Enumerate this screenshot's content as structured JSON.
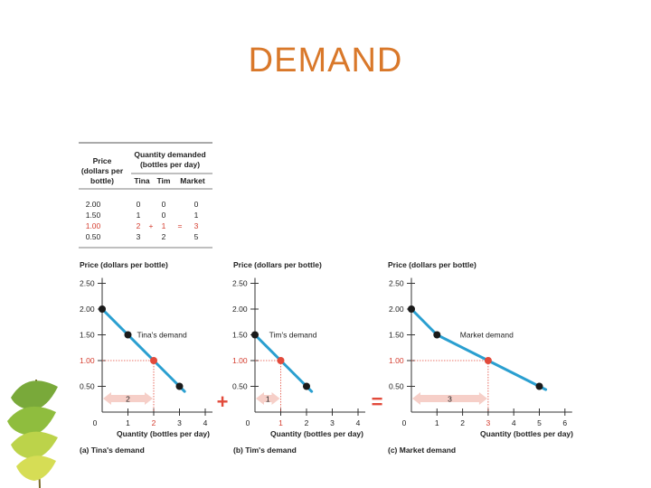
{
  "slide": {
    "title": "DEMAND"
  },
  "table": {
    "price_header": [
      "Price",
      "(dollars per",
      "bottle)"
    ],
    "qty_header": [
      "Quantity demanded",
      "(bottles per day)"
    ],
    "cols": [
      "Tina",
      "Tim",
      "Market"
    ],
    "rows": [
      {
        "price": "2.00",
        "tina": "0",
        "tim": "0",
        "market": "0",
        "highlight": false
      },
      {
        "price": "1.50",
        "tina": "1",
        "tim": "0",
        "market": "1",
        "highlight": false
      },
      {
        "price": "1.00",
        "tina": "2",
        "tim": "1",
        "market": "3",
        "highlight": true
      },
      {
        "price": "0.50",
        "tina": "3",
        "tim": "2",
        "market": "5",
        "highlight": false
      }
    ],
    "plus": "+",
    "equals": "="
  },
  "operators": {
    "plus": "+",
    "equals": "="
  },
  "colors": {
    "curve": "#2a9fd0",
    "point": "#1a1a1a",
    "highlight": "#e24a3b",
    "arrow": "#f6cfc8",
    "title": "#d9782a"
  },
  "chart_data": [
    {
      "type": "line",
      "ylabel": "Price (dollars per bottle)",
      "xlabel": "Quantity (bottles per day)",
      "caption": "(a) Tina's demand",
      "curve_label": "Tina's demand",
      "x_ticks": [
        "0",
        "1",
        "2",
        "3",
        "4"
      ],
      "y_ticks": [
        "0.50",
        "1.00",
        "1.50",
        "2.00",
        "2.50"
      ],
      "xlim": [
        0,
        4
      ],
      "ylim": [
        0,
        2.5
      ],
      "highlight": {
        "x": 2,
        "y": 1.0,
        "label": "2"
      },
      "series": [
        {
          "points": [
            [
              0,
              2.0
            ],
            [
              1,
              1.5
            ],
            [
              2,
              1.0
            ],
            [
              3,
              0.5
            ]
          ]
        }
      ]
    },
    {
      "type": "line",
      "ylabel": "Price (dollars per bottle)",
      "xlabel": "Quantity (bottles per day)",
      "caption": "(b) Tim's demand",
      "curve_label": "Tim's demand",
      "x_ticks": [
        "0",
        "1",
        "2",
        "3",
        "4"
      ],
      "y_ticks": [
        "0.50",
        "1.00",
        "1.50",
        "2.00",
        "2.50"
      ],
      "xlim": [
        0,
        4
      ],
      "ylim": [
        0,
        2.5
      ],
      "highlight": {
        "x": 1,
        "y": 1.0,
        "label": "1"
      },
      "series": [
        {
          "points": [
            [
              0,
              1.5
            ],
            [
              1,
              1.0
            ],
            [
              2,
              0.5
            ]
          ]
        }
      ]
    },
    {
      "type": "line",
      "ylabel": "Price (dollars per bottle)",
      "xlabel": "Quantity (bottles per day)",
      "caption": "(c) Market demand",
      "curve_label": "Market demand",
      "x_ticks": [
        "0",
        "1",
        "2",
        "3",
        "4",
        "5",
        "6"
      ],
      "y_ticks": [
        "0.50",
        "1.00",
        "1.50",
        "2.00",
        "2.50"
      ],
      "xlim": [
        0,
        6
      ],
      "ylim": [
        0,
        2.5
      ],
      "highlight": {
        "x": 3,
        "y": 1.0,
        "label": "3"
      },
      "series": [
        {
          "points": [
            [
              0,
              2.0
            ],
            [
              1,
              1.5
            ],
            [
              3,
              1.0
            ],
            [
              5,
              0.5
            ]
          ]
        }
      ]
    }
  ]
}
